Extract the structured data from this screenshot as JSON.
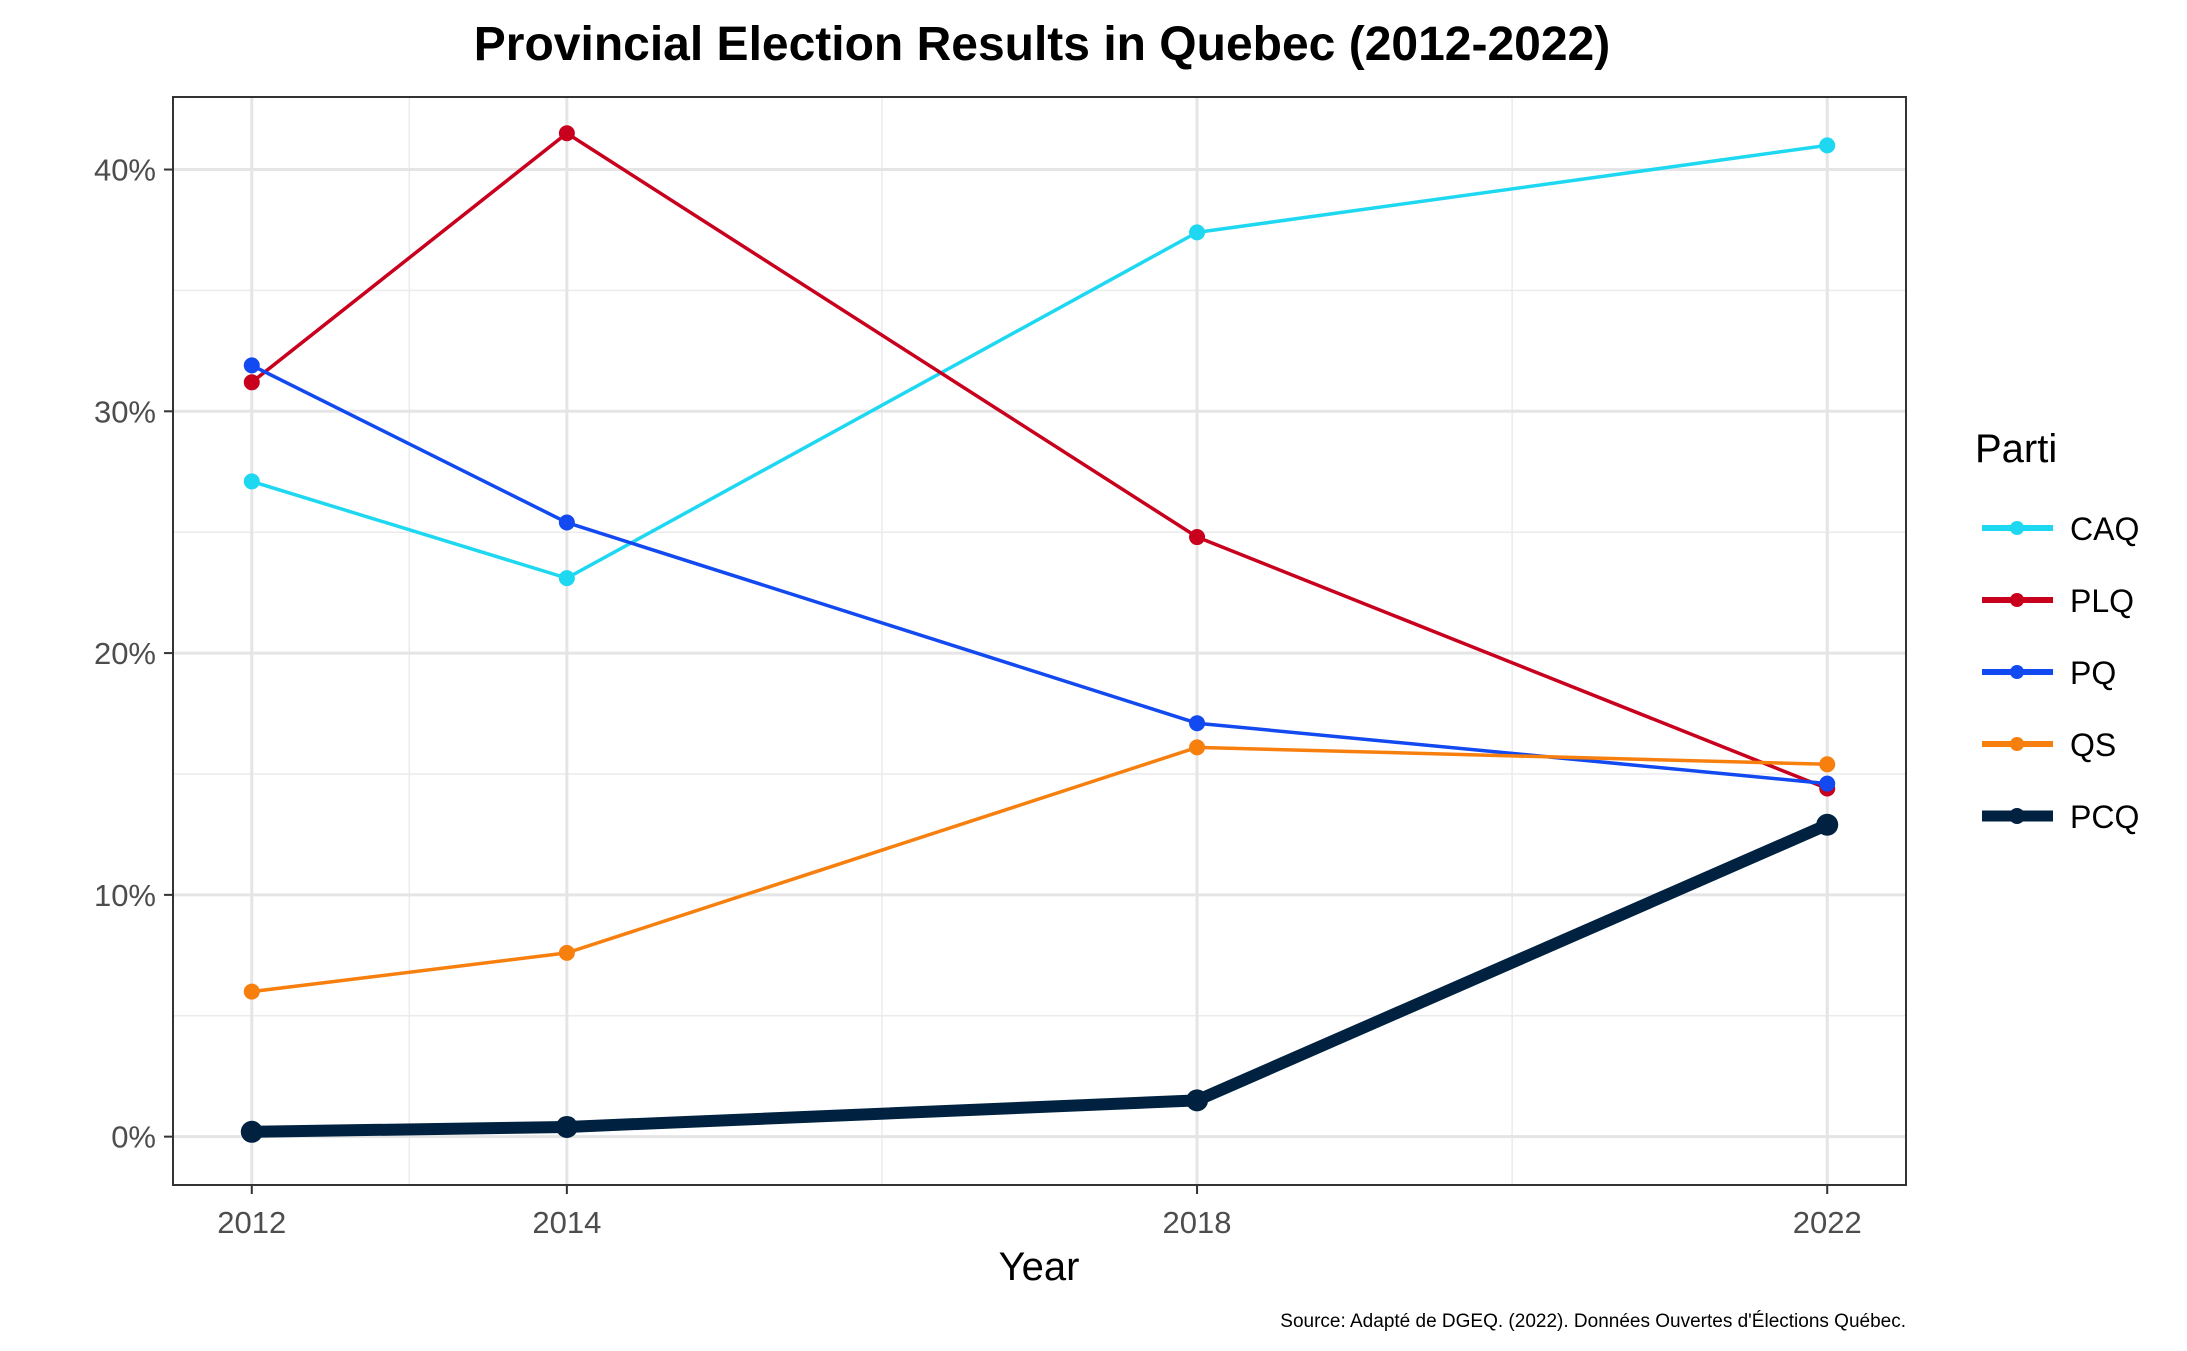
{
  "chart_data": {
    "type": "line",
    "title": "Provincial Election Results in Quebec (2012-2022)",
    "xlabel": "Year",
    "ylabel": "",
    "x": [
      2012,
      2014,
      2018,
      2022
    ],
    "x_tick_labels": [
      "2012",
      "2014",
      "2018",
      "2022"
    ],
    "xlim": [
      2011.5,
      2022.5
    ],
    "ylim": [
      -2,
      43
    ],
    "y_ticks": [
      0,
      10,
      20,
      30,
      40
    ],
    "y_tick_labels": [
      "0%",
      "10%",
      "20%",
      "30%",
      "40%"
    ],
    "y_minor_ticks": [
      5,
      15,
      25,
      35
    ],
    "x_minor_ticks": [
      2013,
      2016,
      2020
    ],
    "grid": true,
    "legend_title": "Parti",
    "legend_position": "right",
    "caption": "Source: Adapté de DGEQ. (2022). Données Ouvertes d'Élections Québec.",
    "series": [
      {
        "name": "CAQ",
        "color": "#1ed8f2",
        "values": [
          27.1,
          23.1,
          37.4,
          41.0
        ],
        "emphasis": false
      },
      {
        "name": "PLQ",
        "color": "#c8001e",
        "values": [
          31.2,
          41.5,
          24.8,
          14.4
        ],
        "emphasis": false
      },
      {
        "name": "PQ",
        "color": "#1249f0",
        "values": [
          31.9,
          25.4,
          17.1,
          14.6
        ],
        "emphasis": false
      },
      {
        "name": "QS",
        "color": "#f77f0e",
        "values": [
          6.0,
          7.6,
          16.1,
          15.4
        ],
        "emphasis": false
      },
      {
        "name": "PCQ",
        "color": "#002240",
        "values": [
          0.2,
          0.4,
          1.5,
          12.9
        ],
        "emphasis": true
      }
    ]
  }
}
